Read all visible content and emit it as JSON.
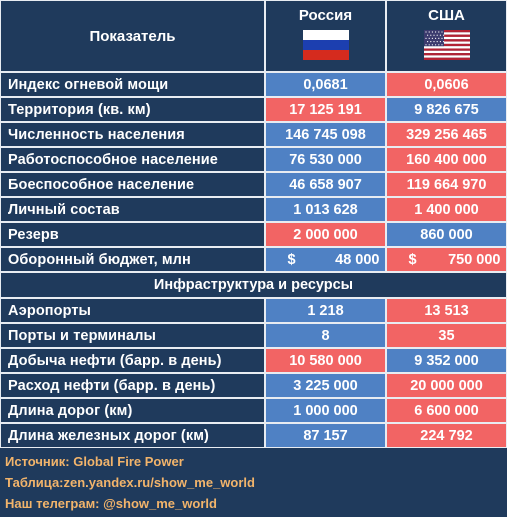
{
  "header": {
    "label": "Показатель",
    "countries": [
      {
        "name": "Россия",
        "flag": "russia-flag-icon"
      },
      {
        "name": "США",
        "flag": "usa-flag-icon"
      }
    ]
  },
  "colors": {
    "background": "#1f3a5c",
    "blue": "#4f81c4",
    "red": "#f26464",
    "footer_text": "#f2b46b"
  },
  "rows": [
    {
      "label": "Индекс огневой мощи",
      "ru": "0,0681",
      "us": "0,0606",
      "ru_color": "blue",
      "us_color": "red"
    },
    {
      "label": "Территория (кв. км)",
      "ru": "17 125 191",
      "us": "9 826 675",
      "ru_color": "red",
      "us_color": "blue"
    },
    {
      "label": "Численность населения",
      "ru": "146 745 098",
      "us": "329 256 465",
      "ru_color": "blue",
      "us_color": "red"
    },
    {
      "label": "Работоспособное население",
      "ru": "76 530 000",
      "us": "160 400 000",
      "ru_color": "blue",
      "us_color": "red"
    },
    {
      "label": "Боеспособное население",
      "ru": "46 658 907",
      "us": "119 664 970",
      "ru_color": "blue",
      "us_color": "red"
    },
    {
      "label": "Личный состав",
      "ru": "1 013 628",
      "us": "1 400 000",
      "ru_color": "blue",
      "us_color": "red"
    },
    {
      "label": "Резерв",
      "ru": "2 000 000",
      "us": "860 000",
      "ru_color": "red",
      "us_color": "blue"
    },
    {
      "label": "Оборонный бюджет, млн",
      "ru": "48 000",
      "us": "750 000",
      "ru_currency": "$",
      "us_currency": "$",
      "ru_color": "blue",
      "us_color": "red"
    }
  ],
  "section_title": "Инфраструктура и ресурсы",
  "infra_rows": [
    {
      "label": "Аэропорты",
      "ru": "1 218",
      "us": "13 513",
      "ru_color": "blue",
      "us_color": "red"
    },
    {
      "label": "Порты и терминалы",
      "ru": "8",
      "us": "35",
      "ru_color": "blue",
      "us_color": "red"
    },
    {
      "label": "Добыча нефти (барр. в день)",
      "ru": "10 580 000",
      "us": "9 352 000",
      "ru_color": "red",
      "us_color": "blue"
    },
    {
      "label": "Расход нефти (барр. в день)",
      "ru": "3 225 000",
      "us": "20 000 000",
      "ru_color": "blue",
      "us_color": "red"
    },
    {
      "label": "Длина дорог (км)",
      "ru": "1 000 000",
      "us": "6 600 000",
      "ru_color": "blue",
      "us_color": "red"
    },
    {
      "label": "Длина железных дорог (км)",
      "ru": "87 157",
      "us": "224 792",
      "ru_color": "blue",
      "us_color": "red"
    }
  ],
  "footer": {
    "source": "Источник: Global Fire Power",
    "table": "Таблица:zen.yandex.ru/show_me_world",
    "telegram": "Наш телеграм: @show_me_world"
  }
}
